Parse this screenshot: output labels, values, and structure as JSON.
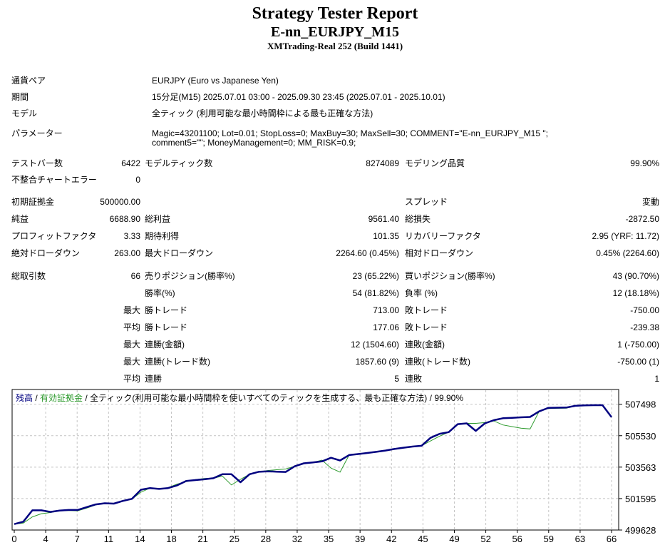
{
  "report": {
    "title": "Strategy Tester Report",
    "ea_name": "E-nn_EURJPY_M15",
    "server": "XMTrading-Real 252 (Build 1441)"
  },
  "info": {
    "symbol_label": "通貨ペア",
    "symbol_value": "EURJPY (Euro vs Japanese Yen)",
    "period_label": "期間",
    "period_value": "15分足(M15) 2025.07.01 03:00 - 2025.09.30 23:45 (2025.07.01 - 2025.10.01)",
    "model_label": "モデル",
    "model_value": "全ティック (利用可能な最小時間枠による最も正確な方法)",
    "params_label": "パラメーター",
    "params_value": "Magic=43201100; Lot=0.01; StopLoss=0; MaxBuy=30; MaxSell=30; COMMENT=\"E-nn_EURJPY_M15 \"; comment5=\"\"; MoneyManagement=0; MM_RISK=0.9;"
  },
  "stats": {
    "rows": [
      {
        "c1": "テストバー数",
        "c2": "6422",
        "c3": "モデルティック数",
        "c4": "8274089",
        "c5": "モデリング品質",
        "c6": "99.90%"
      },
      {
        "c1": "不整合チャートエラー",
        "c2": "0"
      },
      {
        "c1": "初期証拠金",
        "c2": "500000.00",
        "c5": "スプレッド",
        "c6": "変動"
      },
      {
        "c1": "純益",
        "c2": "6688.90",
        "c3": "総利益",
        "c4": "9561.40",
        "c5": "総損失",
        "c6": "-2872.50"
      },
      {
        "c1": "プロフィットファクタ",
        "c2": "3.33",
        "c3": "期待利得",
        "c4": "101.35",
        "c5": "リカバリーファクタ",
        "c6": "2.95 (YRF: 11.72)"
      },
      {
        "c1": "絶対ドローダウン",
        "c2": "263.00",
        "c3": "最大ドローダウン",
        "c4": "2264.60 (0.45%)",
        "c5": "相対ドローダウン",
        "c6": "0.45% (2264.60)"
      },
      {
        "c1": "総取引数",
        "c2": "66",
        "c3": "売りポジション(勝率%)",
        "c4": "23 (65.22%)",
        "c5": "買いポジション(勝率%)",
        "c6": "43 (90.70%)"
      },
      {
        "c3": "勝率(%)",
        "c4": "54 (81.82%)",
        "c5": "負率 (%)",
        "c6": "12 (18.18%)"
      },
      {
        "c2": "最大",
        "c3": "勝トレード",
        "c4": "713.00",
        "c5": "敗トレード",
        "c6": "-750.00"
      },
      {
        "c2": "平均",
        "c3": "勝トレード",
        "c4": "177.06",
        "c5": "敗トレード",
        "c6": "-239.38"
      },
      {
        "c2": "最大",
        "c3": "連勝(金額)",
        "c4": "12 (1504.60)",
        "c5": "連敗(金額)",
        "c6": "1 (-750.00)"
      },
      {
        "c2": "最大",
        "c3": "連勝(トレード数)",
        "c4": "1857.60 (9)",
        "c5": "連敗(トレード数)",
        "c6": "-750.00 (1)"
      },
      {
        "c2": "平均",
        "c3": "連勝",
        "c4": "5",
        "c5": "連敗",
        "c6": "1"
      }
    ]
  },
  "chart_data": {
    "type": "line",
    "title_parts": {
      "balance": "残高",
      "sep1": " / ",
      "equity": "有効証拠金",
      "sep2": " / ",
      "model": "全ティック(利用可能な最小時間枠を使いすべてのティックを生成する、最も正確な方法)",
      "sep3": " / ",
      "quality": "99.90%"
    },
    "x_ticks": [
      0,
      4,
      7,
      11,
      14,
      18,
      21,
      25,
      28,
      32,
      35,
      39,
      42,
      45,
      49,
      52,
      56,
      59,
      63,
      66
    ],
    "y_ticks": [
      507498,
      505530,
      503563,
      501595,
      499628
    ],
    "xlim": [
      0,
      66
    ],
    "y_range": [
      499628,
      508420
    ],
    "grid": true,
    "colors": {
      "balance": "#000080",
      "equity": "#2e9b2e",
      "grid": "#c4c4c4",
      "border": "#000000"
    },
    "series": [
      {
        "name": "残高",
        "color": "#000080",
        "values": [
          500000,
          500150,
          500860,
          500860,
          500760,
          500840,
          500880,
          500880,
          501060,
          501230,
          501300,
          501280,
          501450,
          501580,
          502150,
          502250,
          502200,
          502250,
          502420,
          502700,
          502750,
          502800,
          502870,
          503120,
          503120,
          502620,
          503120,
          503270,
          503300,
          503280,
          503260,
          503620,
          503800,
          503860,
          503920,
          504150,
          503980,
          504320,
          504380,
          504450,
          504520,
          504600,
          504700,
          504780,
          504850,
          504900,
          505400,
          505650,
          505750,
          506250,
          506300,
          505830,
          506300,
          506500,
          506620,
          506650,
          506680,
          506700,
          507050,
          507270,
          507280,
          507290,
          507400,
          507430,
          507440,
          507440,
          506689
        ]
      },
      {
        "name": "有効証拠金",
        "color": "#2e9b2e",
        "values": [
          500000,
          500060,
          500450,
          500650,
          500720,
          500840,
          500850,
          500830,
          501000,
          501200,
          501300,
          501280,
          501430,
          501560,
          502000,
          502250,
          502200,
          502280,
          502500,
          502650,
          502780,
          502850,
          502870,
          503000,
          502450,
          502800,
          503120,
          503270,
          503350,
          503400,
          503450,
          503620,
          503800,
          503860,
          504000,
          503500,
          503250,
          504320,
          504380,
          504450,
          504520,
          504600,
          504700,
          504780,
          504850,
          504900,
          505200,
          505500,
          505750,
          506250,
          506300,
          506300,
          506350,
          506450,
          506200,
          506100,
          506000,
          505950,
          507050,
          507230,
          507240,
          507250,
          507400,
          507430,
          507440,
          507440,
          506689
        ]
      }
    ]
  }
}
